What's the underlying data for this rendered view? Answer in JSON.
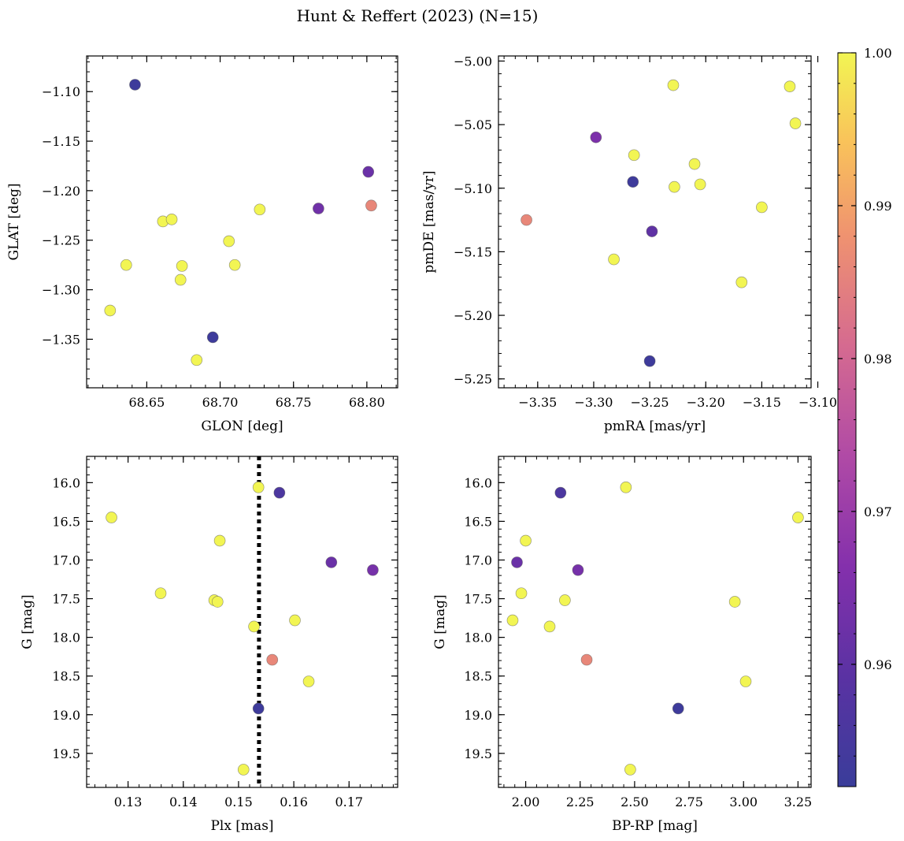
{
  "figure_title": "Hunt & Reffert (2023) (N=15)",
  "colorbar": {
    "range": [
      0.952,
      1.0
    ],
    "ticks": [
      0.96,
      0.97,
      0.98,
      0.99,
      1.0
    ],
    "tick_labels": [
      "0.96",
      "0.97",
      "0.98",
      "0.99",
      "1.00"
    ],
    "colormap": "plasma"
  },
  "chart_data": [
    {
      "type": "scatter",
      "id": "glon-glat",
      "title": "",
      "xlabel": "GLON [deg]",
      "ylabel": "GLAT [deg]",
      "xlim": [
        68.609,
        68.821
      ],
      "ylim": [
        -1.399,
        -1.064
      ],
      "y_inverted": false,
      "xticks": [
        68.65,
        68.7,
        68.75,
        68.8
      ],
      "xtick_labels": [
        "68.65",
        "68.70",
        "68.75",
        "68.80"
      ],
      "yticks": [
        -1.1,
        -1.15,
        -1.2,
        -1.25,
        -1.3,
        -1.35
      ],
      "ytick_labels": [
        "−1.10",
        "−1.15",
        "−1.20",
        "−1.25",
        "−1.30",
        "−1.35"
      ],
      "points": [
        {
          "x": 68.642,
          "y": -1.093,
          "c": 0.953
        },
        {
          "x": 68.625,
          "y": -1.321,
          "c": 1.0
        },
        {
          "x": 68.636,
          "y": -1.275,
          "c": 1.0
        },
        {
          "x": 68.661,
          "y": -1.231,
          "c": 1.0
        },
        {
          "x": 68.667,
          "y": -1.229,
          "c": 1.0
        },
        {
          "x": 68.674,
          "y": -1.276,
          "c": 1.0
        },
        {
          "x": 68.673,
          "y": -1.29,
          "c": 1.0
        },
        {
          "x": 68.684,
          "y": -1.371,
          "c": 1.0
        },
        {
          "x": 68.695,
          "y": -1.348,
          "c": 0.953
        },
        {
          "x": 68.706,
          "y": -1.251,
          "c": 1.0
        },
        {
          "x": 68.71,
          "y": -1.275,
          "c": 1.0
        },
        {
          "x": 68.727,
          "y": -1.219,
          "c": 1.0
        },
        {
          "x": 68.767,
          "y": -1.218,
          "c": 0.963
        },
        {
          "x": 68.801,
          "y": -1.181,
          "c": 0.962
        },
        {
          "x": 68.803,
          "y": -1.215,
          "c": 0.986
        }
      ]
    },
    {
      "type": "scatter",
      "id": "pmra-pmde",
      "title": "",
      "xlabel": "pmRA [mas/yr]",
      "ylabel": "pmDE [mas/yr]",
      "xlim": [
        -3.385,
        -3.106
      ],
      "ylim": [
        -5.257,
        -4.996
      ],
      "y_inverted": false,
      "xticks": [
        -3.35,
        -3.3,
        -3.25,
        -3.2,
        -3.15,
        -3.1
      ],
      "xtick_labels": [
        "−3.35",
        "−3.30",
        "−3.25",
        "−3.20",
        "−3.15",
        "−3.10"
      ],
      "yticks": [
        -5.0,
        -5.05,
        -5.1,
        -5.15,
        -5.2,
        -5.25
      ],
      "ytick_labels": [
        "−5.00",
        "−5.05",
        "−5.10",
        "−5.15",
        "−5.20",
        "−5.25"
      ],
      "points": [
        {
          "x": -3.36,
          "y": -5.125,
          "c": 0.986
        },
        {
          "x": -3.298,
          "y": -5.06,
          "c": 0.965
        },
        {
          "x": -3.282,
          "y": -5.156,
          "c": 1.0
        },
        {
          "x": -3.264,
          "y": -5.074,
          "c": 1.0
        },
        {
          "x": -3.265,
          "y": -5.095,
          "c": 0.953
        },
        {
          "x": -3.248,
          "y": -5.134,
          "c": 0.96
        },
        {
          "x": -3.25,
          "y": -5.236,
          "c": 0.953
        },
        {
          "x": -3.229,
          "y": -5.019,
          "c": 1.0
        },
        {
          "x": -3.228,
          "y": -5.099,
          "c": 1.0
        },
        {
          "x": -3.21,
          "y": -5.081,
          "c": 1.0
        },
        {
          "x": -3.205,
          "y": -5.097,
          "c": 1.0
        },
        {
          "x": -3.168,
          "y": -5.174,
          "c": 1.0
        },
        {
          "x": -3.15,
          "y": -5.115,
          "c": 1.0
        },
        {
          "x": -3.125,
          "y": -5.02,
          "c": 1.0
        },
        {
          "x": -3.12,
          "y": -5.049,
          "c": 1.0
        }
      ]
    },
    {
      "type": "scatter",
      "id": "plx-g",
      "title": "",
      "xlabel": "Plx [mas]",
      "ylabel": "G [mag]",
      "xlim": [
        0.1225,
        0.1788
      ],
      "ylim": [
        15.66,
        19.94
      ],
      "y_inverted": true,
      "xticks": [
        0.13,
        0.14,
        0.15,
        0.16,
        0.17
      ],
      "xtick_labels": [
        "0.13",
        "0.14",
        "0.15",
        "0.16",
        "0.17"
      ],
      "yticks": [
        16.0,
        16.5,
        17.0,
        17.5,
        18.0,
        18.5,
        19.0,
        19.5
      ],
      "ytick_labels": [
        "16.0",
        "16.5",
        "17.0",
        "17.5",
        "18.0",
        "18.5",
        "19.0",
        "19.5"
      ],
      "vline": {
        "x": 0.1537,
        "style": "dotted"
      },
      "points": [
        {
          "x": 0.127,
          "y": 16.45,
          "c": 1.0
        },
        {
          "x": 0.1359,
          "y": 17.43,
          "c": 1.0
        },
        {
          "x": 0.1456,
          "y": 17.52,
          "c": 1.0
        },
        {
          "x": 0.1462,
          "y": 17.54,
          "c": 1.0
        },
        {
          "x": 0.1466,
          "y": 16.75,
          "c": 1.0
        },
        {
          "x": 0.1509,
          "y": 19.71,
          "c": 1.0
        },
        {
          "x": 0.1528,
          "y": 17.86,
          "c": 1.0
        },
        {
          "x": 0.1536,
          "y": 16.06,
          "c": 1.0
        },
        {
          "x": 0.1536,
          "y": 18.92,
          "c": 0.953
        },
        {
          "x": 0.1561,
          "y": 18.29,
          "c": 0.986
        },
        {
          "x": 0.1574,
          "y": 16.13,
          "c": 0.956
        },
        {
          "x": 0.1602,
          "y": 17.78,
          "c": 1.0
        },
        {
          "x": 0.1627,
          "y": 18.57,
          "c": 1.0
        },
        {
          "x": 0.1668,
          "y": 17.03,
          "c": 0.962
        },
        {
          "x": 0.1743,
          "y": 17.13,
          "c": 0.964
        }
      ]
    },
    {
      "type": "scatter",
      "id": "bprp-g",
      "title": "",
      "xlabel": "BP-RP [mag]",
      "ylabel": "G [mag]",
      "xlim": [
        1.875,
        3.31
      ],
      "ylim": [
        15.66,
        19.94
      ],
      "y_inverted": true,
      "xticks": [
        2.0,
        2.25,
        2.5,
        2.75,
        3.0,
        3.25
      ],
      "xtick_labels": [
        "2.00",
        "2.25",
        "2.50",
        "2.75",
        "3.00",
        "3.25"
      ],
      "yticks": [
        16.0,
        16.5,
        17.0,
        17.5,
        18.0,
        18.5,
        19.0,
        19.5
      ],
      "ytick_labels": [
        "16.0",
        "16.5",
        "17.0",
        "17.5",
        "18.0",
        "18.5",
        "19.0",
        "19.5"
      ],
      "points": [
        {
          "x": 1.94,
          "y": 17.78,
          "c": 1.0
        },
        {
          "x": 1.96,
          "y": 17.03,
          "c": 0.962
        },
        {
          "x": 1.98,
          "y": 17.43,
          "c": 1.0
        },
        {
          "x": 2.0,
          "y": 16.75,
          "c": 1.0
        },
        {
          "x": 2.11,
          "y": 17.86,
          "c": 1.0
        },
        {
          "x": 2.16,
          "y": 16.13,
          "c": 0.956
        },
        {
          "x": 2.18,
          "y": 17.52,
          "c": 1.0
        },
        {
          "x": 2.24,
          "y": 17.13,
          "c": 0.964
        },
        {
          "x": 2.28,
          "y": 18.29,
          "c": 0.986
        },
        {
          "x": 2.46,
          "y": 16.06,
          "c": 1.0
        },
        {
          "x": 2.48,
          "y": 19.71,
          "c": 1.0
        },
        {
          "x": 2.7,
          "y": 18.92,
          "c": 0.953
        },
        {
          "x": 2.96,
          "y": 17.54,
          "c": 1.0
        },
        {
          "x": 3.01,
          "y": 18.57,
          "c": 1.0
        },
        {
          "x": 3.25,
          "y": 16.45,
          "c": 1.0
        }
      ]
    }
  ]
}
